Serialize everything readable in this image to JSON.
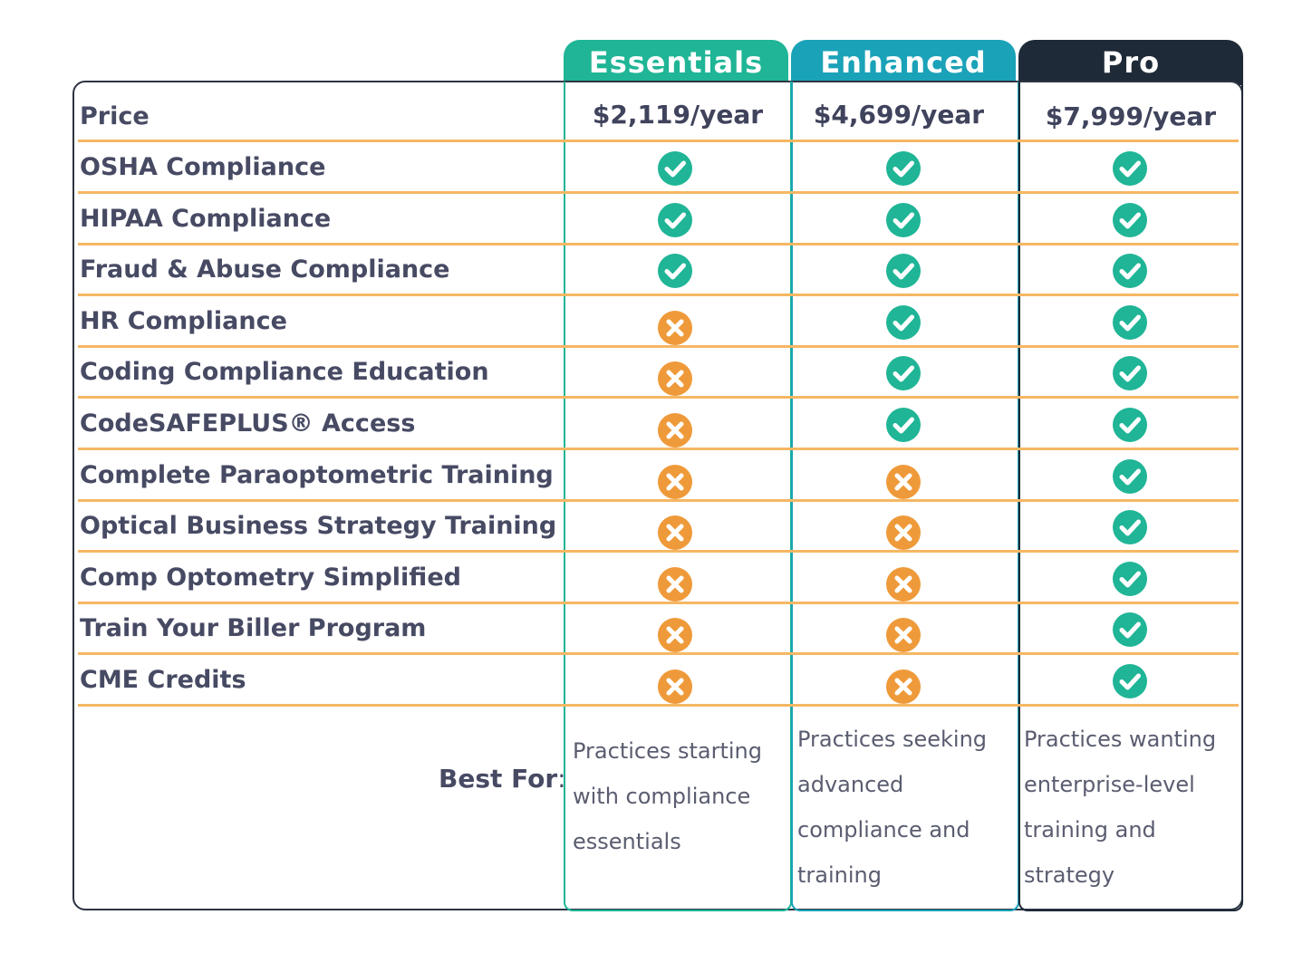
{
  "plans": [
    {
      "name": "Essentials",
      "price": "$2,119/year",
      "color": "#1fb596",
      "best_for": [
        "Practices starting",
        "with compliance",
        "essentials"
      ]
    },
    {
      "name": "Enhanced",
      "price": "$4,699/year",
      "color": "#1aa2b8",
      "best_for": [
        "Practices seeking",
        "advanced",
        "compliance and",
        "training"
      ]
    },
    {
      "name": "Pro",
      "price": "$7,999/year",
      "color": "#1f2a38",
      "best_for": [
        "Practices wanting",
        "enterprise-level",
        "training and",
        "strategy"
      ]
    }
  ],
  "price_label": "Price",
  "features": [
    {
      "label": "OSHA Compliance",
      "included": [
        true,
        true,
        true
      ]
    },
    {
      "label": "HIPAA Compliance",
      "included": [
        true,
        true,
        true
      ]
    },
    {
      "label": "Fraud & Abuse Compliance",
      "included": [
        true,
        true,
        true
      ]
    },
    {
      "label": "HR Compliance",
      "included": [
        false,
        true,
        true
      ]
    },
    {
      "label": "Coding Compliance Education",
      "included": [
        false,
        true,
        true
      ]
    },
    {
      "label": "CodeSAFEPLUS® Access",
      "included": [
        false,
        true,
        true
      ]
    },
    {
      "label": "Complete Paraoptometric Training",
      "included": [
        false,
        false,
        true
      ]
    },
    {
      "label": "Optical Business Strategy Training",
      "included": [
        false,
        false,
        true
      ]
    },
    {
      "label": "Comp Optometry Simplified",
      "included": [
        false,
        false,
        true
      ]
    },
    {
      "label": "Train Your Biller Program",
      "included": [
        false,
        false,
        true
      ]
    },
    {
      "label": "CME Credits",
      "included": [
        false,
        false,
        true
      ]
    }
  ],
  "best_for_label": "Best For",
  "best_for_colon": ":",
  "icons": {
    "included": "check-circle-icon",
    "excluded": "x-circle-icon"
  },
  "colors": {
    "check": "#1fb596",
    "cross": "#ef9a3a",
    "row_line": "#f6b764",
    "text": "#474a63"
  }
}
